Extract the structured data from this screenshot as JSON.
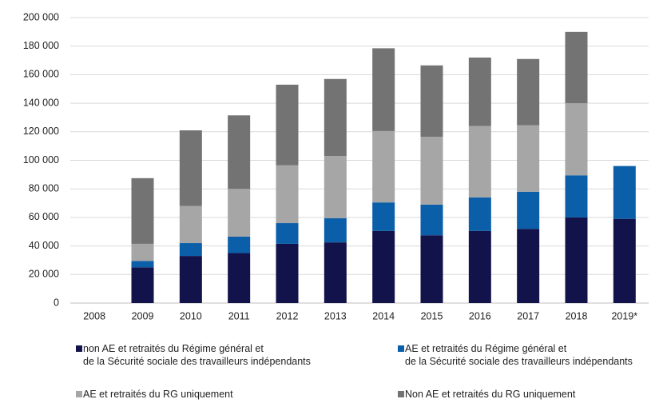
{
  "chart_data": {
    "type": "stacked_bar",
    "categories": [
      "2008",
      "2009",
      "2010",
      "2011",
      "2012",
      "2013",
      "2014",
      "2015",
      "2016",
      "2017",
      "2018",
      "2019*"
    ],
    "series": [
      {
        "name": "non AE et retraités du Régime général et\nde la Sécurité sociale des travailleurs indépendants",
        "color": "#13134b",
        "values": [
          null,
          25000,
          33000,
          35000,
          41500,
          42500,
          50500,
          47500,
          50500,
          52000,
          60000,
          59000
        ]
      },
      {
        "name": "AE et retraités du Régime général et\nde la Sécurité sociale des travailleurs indépendants",
        "color": "#0b5ea8",
        "values": [
          null,
          4500,
          9000,
          11500,
          14500,
          17000,
          20000,
          21500,
          23500,
          26000,
          29500,
          37000
        ]
      },
      {
        "name": "AE et retraités du RG uniquement",
        "color": "#a6a6a6",
        "values": [
          null,
          12000,
          26000,
          33500,
          40500,
          43500,
          50000,
          47500,
          50000,
          46500,
          50500,
          null
        ]
      },
      {
        "name": "Non AE et retraités du RG uniquement",
        "color": "#737373",
        "values": [
          null,
          46000,
          53000,
          51500,
          56500,
          54000,
          58000,
          50000,
          48000,
          46500,
          50000,
          null
        ]
      }
    ],
    "ylim": [
      0,
      200000
    ],
    "yticks": [
      0,
      {
        "value": 20000,
        "label": "20 000"
      },
      {
        "value": 40000,
        "label": "40 000"
      },
      {
        "value": 60000,
        "label": "60 000"
      },
      {
        "value": 80000,
        "label": "80 000"
      },
      {
        "value": 100000,
        "label": "100 000"
      },
      {
        "value": 120000,
        "label": "120 000"
      },
      {
        "value": 140000,
        "label": "140 000"
      },
      {
        "value": 160000,
        "label": "160 000"
      },
      {
        "value": 180000,
        "label": "180 000"
      },
      {
        "value": 200000,
        "label": "200 000"
      }
    ],
    "grid": true
  }
}
